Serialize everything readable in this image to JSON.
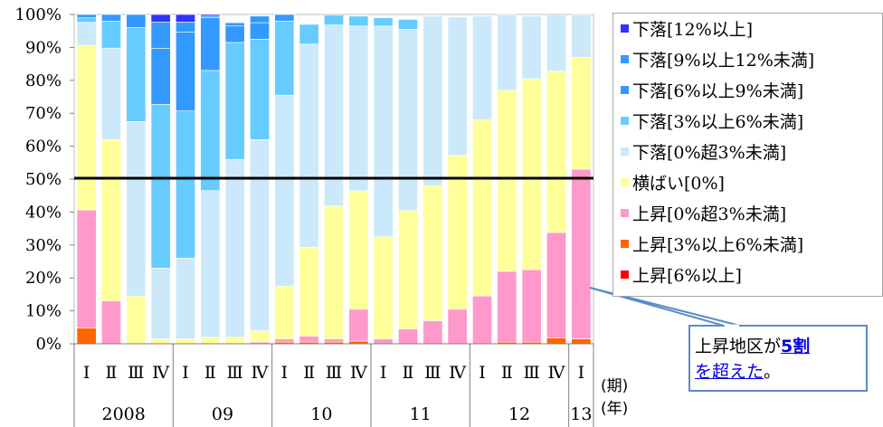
{
  "chart_data": {
    "type": "bar",
    "stacked": true,
    "categories": [
      "2008 I",
      "2008 II",
      "2008 III",
      "2008 IV",
      "09 I",
      "09 II",
      "09 III",
      "09 IV",
      "10 I",
      "10 II",
      "10 III",
      "10 IV",
      "11 I",
      "11 II",
      "11 III",
      "11 IV",
      "12 I",
      "12 II",
      "12 III",
      "12 IV",
      "13 I"
    ],
    "quarter_labels": [
      "Ⅰ",
      "Ⅱ",
      "Ⅲ",
      "Ⅳ",
      "Ⅰ",
      "Ⅱ",
      "Ⅲ",
      "Ⅳ",
      "Ⅰ",
      "Ⅱ",
      "Ⅲ",
      "Ⅳ",
      "Ⅰ",
      "Ⅱ",
      "Ⅲ",
      "Ⅳ",
      "Ⅰ",
      "Ⅱ",
      "Ⅲ",
      "Ⅳ",
      "Ⅰ"
    ],
    "year_groups": [
      {
        "label": "2008",
        "start": 0,
        "end": 3
      },
      {
        "label": "09",
        "start": 4,
        "end": 7
      },
      {
        "label": "10",
        "start": 8,
        "end": 11
      },
      {
        "label": "11",
        "start": 12,
        "end": 15
      },
      {
        "label": "12",
        "start": 16,
        "end": 19
      },
      {
        "label": "13",
        "start": 20,
        "end": 20
      }
    ],
    "period_unit_label": "(期)",
    "year_unit_label": "(年)",
    "ylim": [
      0,
      100
    ],
    "ytick_labels": [
      "0%",
      "10%",
      "20%",
      "30%",
      "40%",
      "50%",
      "60%",
      "70%",
      "80%",
      "90%",
      "100%"
    ],
    "reference_line": 50,
    "series": [
      {
        "name": "上昇[6%以上]",
        "color": "#ff0000",
        "values": [
          0,
          0,
          0,
          0,
          0,
          0,
          0,
          0,
          0,
          0,
          0,
          0,
          0,
          0,
          0,
          0,
          0,
          0,
          0,
          0,
          0
        ]
      },
      {
        "name": "上昇[3%以上6%未満]",
        "color": "#ff6600",
        "values": [
          4.8,
          0,
          0,
          0,
          0,
          0,
          0,
          0,
          0.5,
          0.5,
          0.5,
          0.8,
          0,
          0,
          0,
          0,
          0,
          0.5,
          0.5,
          1.8,
          1.5
        ]
      },
      {
        "name": "上昇[0%超3%未満]",
        "color": "#ff99cc",
        "values": [
          35.8,
          13,
          0,
          0,
          0,
          0,
          0,
          0.5,
          1,
          1.8,
          1,
          9.7,
          1.5,
          4.5,
          7,
          10.5,
          14.5,
          21.5,
          22,
          32,
          51.5
        ]
      },
      {
        "name": "横ばい[0%]",
        "color": "#ffff99",
        "values": [
          50,
          49,
          14.5,
          1.5,
          1.5,
          2,
          2,
          3.5,
          16,
          27,
          40.3,
          36,
          31,
          36,
          41,
          46.7,
          53.5,
          55,
          58,
          49,
          34
        ]
      },
      {
        "name": "下落[0%超3%未満]",
        "color": "#cce9fb",
        "values": [
          7,
          27.8,
          53,
          21.5,
          24.5,
          44.5,
          54,
          58,
          58,
          61.7,
          55,
          50,
          64,
          55,
          51.5,
          42,
          31.5,
          23,
          19,
          17,
          13
        ]
      },
      {
        "name": "下落[3%以上6%未満]",
        "color": "#66ccff",
        "values": [
          1.4,
          8.2,
          28.5,
          49.7,
          44.7,
          36.5,
          35.5,
          30.5,
          22.5,
          6,
          3,
          3,
          2.5,
          3,
          0,
          0,
          0,
          0,
          0,
          0,
          0
        ]
      },
      {
        "name": "下落[6%以上9%未満]",
        "color": "#3399ff",
        "values": [
          0,
          0,
          0,
          17,
          24,
          16,
          5,
          5,
          2,
          0,
          0,
          0,
          0,
          0,
          0,
          0,
          0,
          0,
          0,
          0,
          0
        ]
      },
      {
        "name": "下落[9%以上12%未満]",
        "color": "#3399ff",
        "values": [
          1,
          2,
          4,
          8,
          3,
          0.5,
          1,
          2,
          0,
          0,
          0,
          0,
          0,
          0,
          0,
          0,
          0,
          0,
          0,
          0,
          0
        ]
      },
      {
        "name": "下落[12%以上]",
        "color": "#3333ff",
        "values": [
          0,
          0,
          0,
          2.3,
          2.3,
          0.5,
          0,
          0,
          0,
          0,
          0,
          0,
          0,
          0,
          0,
          0,
          0,
          0,
          0,
          0,
          0
        ]
      }
    ]
  },
  "legend_order": [
    8,
    7,
    6,
    5,
    4,
    3,
    2,
    1,
    0
  ],
  "legend_colors": [
    "#3333ff",
    "#3399ff",
    "#3399ff",
    "#66ccff",
    "#cce9fb",
    "#ffff99",
    "#ff99cc",
    "#ff6600",
    "#ff0000"
  ],
  "callout": {
    "prefix": "上昇地区が",
    "highlight1": "5割",
    "highlight2": "を超えた",
    "suffix": "。"
  }
}
